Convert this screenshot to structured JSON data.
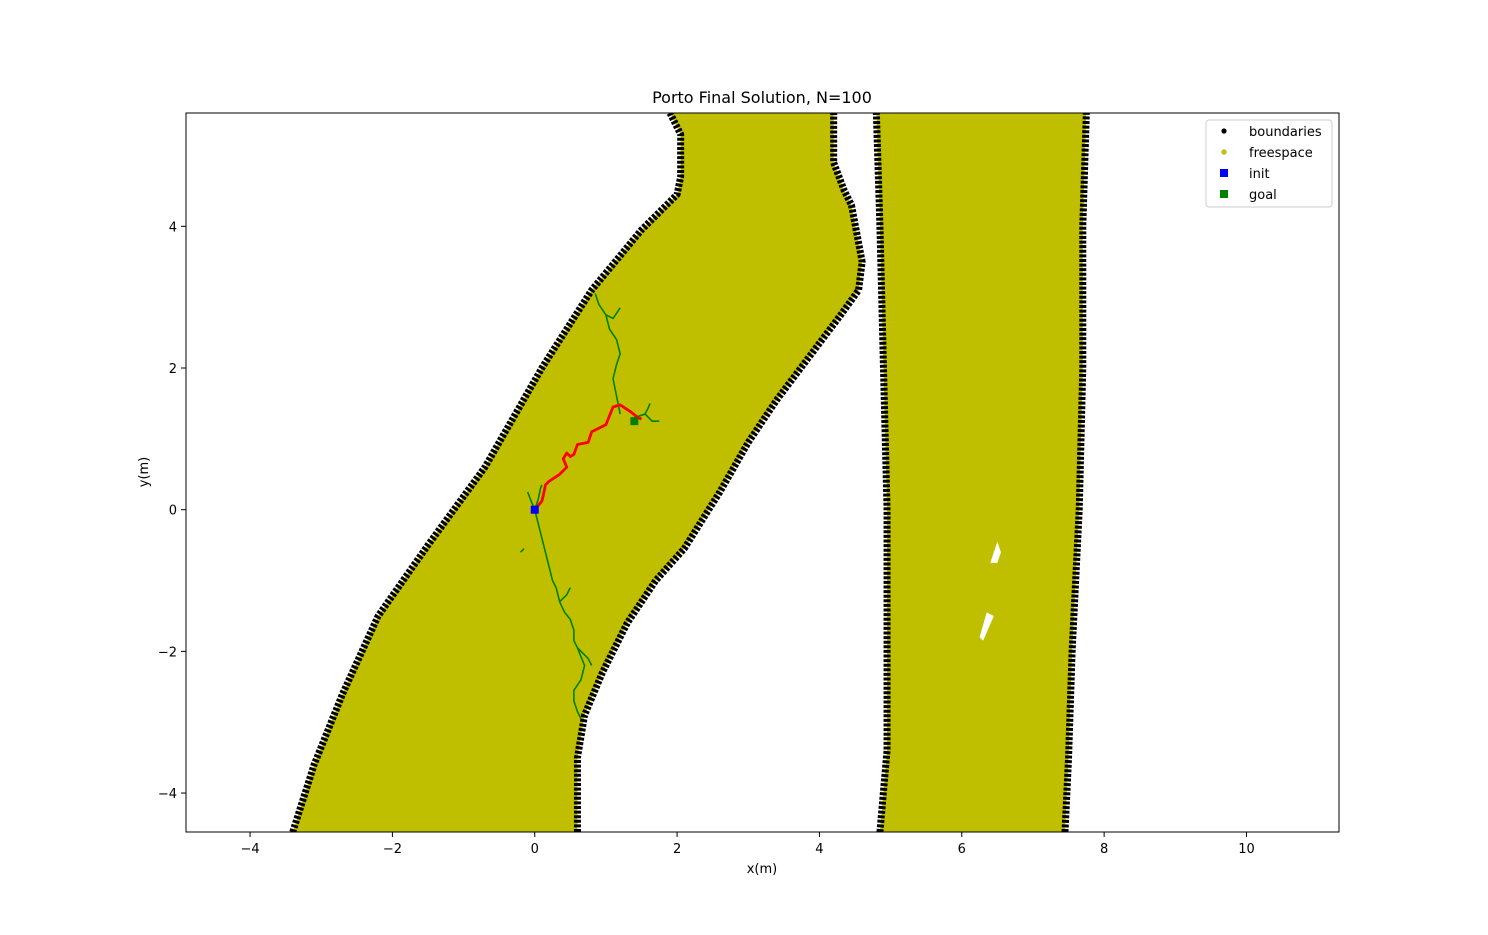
{
  "chart_data": {
    "type": "scatter",
    "title": "Porto Final Solution, N=100",
    "xlabel": "x(m)",
    "ylabel": "y(m)",
    "xlim": [
      -4.9,
      11.3
    ],
    "ylim": [
      -4.55,
      5.6
    ],
    "x_ticks": [
      -4,
      -2,
      0,
      2,
      4,
      6,
      8,
      10
    ],
    "y_ticks": [
      -4,
      -2,
      0,
      2,
      4
    ],
    "x_tick_labels": [
      "−4",
      "−2",
      "0",
      "2",
      "4",
      "6",
      "8",
      "10"
    ],
    "y_tick_labels": [
      "−4",
      "−2",
      "0",
      "2",
      "4"
    ],
    "grid": false,
    "legend_position": "top-right",
    "colors": {
      "boundaries": "#000000",
      "freespace": "#bfbf00",
      "init": "#0000ff",
      "goal": "#008000",
      "tree": "#008000",
      "path": "#ff0000"
    },
    "legend": [
      {
        "label": "boundaries",
        "marker": "dot",
        "color": "#000000"
      },
      {
        "label": "freespace",
        "marker": "dot",
        "color": "#bfbf00"
      },
      {
        "label": "init",
        "marker": "square",
        "color": "#0000ff"
      },
      {
        "label": "goal",
        "marker": "square",
        "color": "#008000"
      }
    ],
    "regions": [
      {
        "name": "left-lane",
        "left_boundary": [
          [
            -3.4,
            -4.55
          ],
          [
            -3.1,
            -3.6
          ],
          [
            -2.7,
            -2.6
          ],
          [
            -2.2,
            -1.5
          ],
          [
            -1.5,
            -0.5
          ],
          [
            -0.7,
            0.6
          ],
          [
            0.1,
            2.0
          ],
          [
            0.8,
            3.1
          ],
          [
            1.5,
            3.95
          ],
          [
            2.0,
            4.45
          ],
          [
            2.05,
            4.7
          ],
          [
            2.05,
            5.3
          ],
          [
            1.9,
            5.6
          ]
        ],
        "right_boundary": [
          [
            0.6,
            -4.55
          ],
          [
            0.6,
            -3.5
          ],
          [
            0.7,
            -2.9
          ],
          [
            0.95,
            -2.3
          ],
          [
            1.3,
            -1.6
          ],
          [
            1.7,
            -1.0
          ],
          [
            2.1,
            -0.55
          ],
          [
            2.6,
            0.25
          ],
          [
            3.0,
            0.95
          ],
          [
            3.4,
            1.55
          ],
          [
            3.85,
            2.15
          ],
          [
            4.3,
            2.75
          ],
          [
            4.55,
            3.1
          ],
          [
            4.6,
            3.5
          ],
          [
            4.45,
            4.3
          ],
          [
            4.35,
            4.5
          ],
          [
            4.2,
            4.9
          ],
          [
            4.2,
            5.3
          ],
          [
            4.2,
            5.6
          ]
        ]
      },
      {
        "name": "right-lane",
        "left_boundary": [
          [
            4.85,
            -4.55
          ],
          [
            4.95,
            -3.4
          ],
          [
            4.95,
            -2.0
          ],
          [
            4.95,
            0.0
          ],
          [
            4.9,
            2.0
          ],
          [
            4.85,
            4.0
          ],
          [
            4.8,
            5.6
          ]
        ],
        "right_boundary": [
          [
            7.45,
            -4.55
          ],
          [
            7.5,
            -3.5
          ],
          [
            7.55,
            -2.0
          ],
          [
            7.6,
            -1.0
          ],
          [
            7.65,
            0.0
          ],
          [
            7.7,
            2.0
          ],
          [
            7.7,
            4.0
          ],
          [
            7.75,
            5.6
          ]
        ]
      }
    ],
    "tree_branches": [
      [
        [
          0.0,
          0.0
        ],
        [
          0.05,
          0.15
        ],
        [
          0.08,
          0.3
        ],
        [
          0.1,
          0.35
        ]
      ],
      [
        [
          0.0,
          0.0
        ],
        [
          -0.05,
          0.12
        ],
        [
          -0.1,
          0.25
        ]
      ],
      [
        [
          0.0,
          0.0
        ],
        [
          0.05,
          -0.2
        ],
        [
          0.1,
          -0.4
        ],
        [
          0.15,
          -0.6
        ],
        [
          0.2,
          -0.8
        ],
        [
          0.25,
          -1.0
        ],
        [
          0.3,
          -1.1
        ],
        [
          0.35,
          -1.3
        ]
      ],
      [
        [
          0.35,
          -1.3
        ],
        [
          0.45,
          -1.2
        ],
        [
          0.5,
          -1.1
        ]
      ],
      [
        [
          0.35,
          -1.3
        ],
        [
          0.42,
          -1.45
        ],
        [
          0.5,
          -1.55
        ],
        [
          0.55,
          -1.7
        ],
        [
          0.55,
          -1.85
        ],
        [
          0.6,
          -1.95
        ]
      ],
      [
        [
          0.6,
          -1.95
        ],
        [
          0.7,
          -2.2
        ],
        [
          0.65,
          -2.4
        ],
        [
          0.55,
          -2.55
        ],
        [
          0.55,
          -2.7
        ],
        [
          0.6,
          -2.85
        ],
        [
          0.65,
          -2.95
        ]
      ],
      [
        [
          0.6,
          -1.95
        ],
        [
          0.75,
          -2.1
        ],
        [
          0.8,
          -2.2
        ]
      ],
      [
        [
          1.2,
          1.35
        ],
        [
          1.15,
          1.6
        ],
        [
          1.1,
          1.85
        ],
        [
          1.15,
          2.05
        ],
        [
          1.2,
          2.2
        ],
        [
          1.15,
          2.4
        ],
        [
          1.05,
          2.55
        ],
        [
          1.0,
          2.75
        ],
        [
          0.9,
          2.9
        ],
        [
          0.85,
          3.05
        ]
      ],
      [
        [
          1.0,
          2.75
        ],
        [
          1.1,
          2.7
        ],
        [
          1.2,
          2.85
        ]
      ],
      [
        [
          1.4,
          1.3
        ],
        [
          1.55,
          1.35
        ],
        [
          1.65,
          1.25
        ],
        [
          1.75,
          1.25
        ]
      ],
      [
        [
          1.55,
          1.35
        ],
        [
          1.6,
          1.45
        ],
        [
          1.62,
          1.5
        ]
      ],
      [
        [
          -0.15,
          -0.55
        ],
        [
          -0.2,
          -0.6
        ]
      ]
    ],
    "solution_path": [
      [
        0.0,
        0.0
      ],
      [
        0.1,
        0.12
      ],
      [
        0.12,
        0.2
      ],
      [
        0.15,
        0.35
      ],
      [
        0.2,
        0.4
      ],
      [
        0.35,
        0.5
      ],
      [
        0.45,
        0.6
      ],
      [
        0.4,
        0.72
      ],
      [
        0.45,
        0.8
      ],
      [
        0.5,
        0.75
      ],
      [
        0.55,
        0.78
      ],
      [
        0.6,
        0.92
      ],
      [
        0.75,
        0.95
      ],
      [
        0.8,
        1.1
      ],
      [
        0.9,
        1.15
      ],
      [
        1.0,
        1.2
      ],
      [
        1.1,
        1.45
      ],
      [
        1.2,
        1.48
      ],
      [
        1.35,
        1.38
      ],
      [
        1.45,
        1.3
      ],
      [
        1.5,
        1.28
      ]
    ],
    "points": {
      "init": [
        0.0,
        0.0
      ],
      "goal": [
        1.4,
        1.25
      ]
    },
    "holes": [
      [
        [
          6.4,
          -0.75
        ],
        [
          6.5,
          -0.45
        ],
        [
          6.55,
          -0.6
        ],
        [
          6.5,
          -0.75
        ]
      ],
      [
        [
          6.25,
          -1.8
        ],
        [
          6.35,
          -1.45
        ],
        [
          6.45,
          -1.5
        ],
        [
          6.3,
          -1.85
        ]
      ]
    ]
  }
}
